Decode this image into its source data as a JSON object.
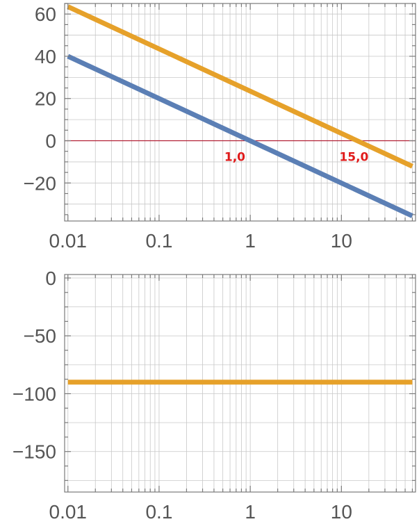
{
  "chart_data": [
    {
      "type": "line",
      "title": "",
      "xlabel": "",
      "ylabel": "",
      "x_scale": "log",
      "xlim": [
        0.0092,
        65
      ],
      "ylim": [
        -38,
        65
      ],
      "x_ticks": [
        {
          "value": 0.01,
          "label": "0.01"
        },
        {
          "value": 0.1,
          "label": "0.1"
        },
        {
          "value": 1,
          "label": "1"
        },
        {
          "value": 10,
          "label": "10"
        }
      ],
      "y_ticks": [
        {
          "value": 60,
          "label": "60"
        },
        {
          "value": 40,
          "label": "40"
        },
        {
          "value": 20,
          "label": "20"
        },
        {
          "value": 0,
          "label": "0"
        },
        {
          "value": -20,
          "label": "−20"
        }
      ],
      "grid": true,
      "reference_line": {
        "y": 0,
        "color": "#b22034"
      },
      "series": [
        {
          "color": "#5b7fb5",
          "x": [
            0.01,
            60
          ],
          "y": [
            40,
            -35.6
          ]
        },
        {
          "color": "#e6a12a",
          "x": [
            0.01,
            60
          ],
          "y": [
            63.5,
            -12.1
          ]
        }
      ],
      "annotations": [
        {
          "text": "1,0",
          "x": 0.52,
          "y": -7.5,
          "color": "#e01b1b"
        },
        {
          "text": "15,0",
          "x": 9.5,
          "y": -7.5,
          "color": "#e01b1b"
        }
      ]
    },
    {
      "type": "line",
      "title": "",
      "xlabel": "",
      "ylabel": "",
      "x_scale": "log",
      "xlim": [
        0.0092,
        65
      ],
      "ylim": [
        -185,
        3
      ],
      "x_ticks": [
        {
          "value": 0.01,
          "label": "0.01"
        },
        {
          "value": 0.1,
          "label": "0.1"
        },
        {
          "value": 1,
          "label": "1"
        },
        {
          "value": 10,
          "label": "10"
        }
      ],
      "y_ticks": [
        {
          "value": 0,
          "label": "0"
        },
        {
          "value": -50,
          "label": "−50"
        },
        {
          "value": -100,
          "label": "−100"
        },
        {
          "value": -150,
          "label": "−150"
        }
      ],
      "grid": true,
      "series": [
        {
          "color": "#e6a12a",
          "x": [
            0.01,
            60
          ],
          "y": [
            -90,
            -90
          ]
        }
      ]
    }
  ]
}
